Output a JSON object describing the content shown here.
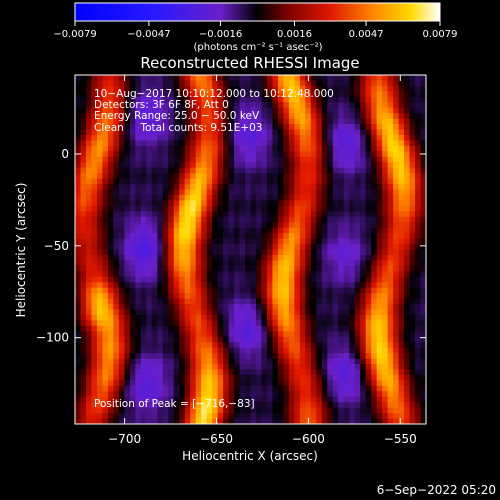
{
  "chart_data": {
    "type": "heatmap",
    "title": "Reconstructed RHESSI Image",
    "xlabel": "Heliocentric X (arcsec)",
    "ylabel": "Heliocentric Y (arcsec)",
    "xlim": [
      -727,
      -536
    ],
    "ylim": [
      -147,
      43
    ],
    "x_ticks": [
      {
        "value": -700,
        "label": "−700"
      },
      {
        "value": -650,
        "label": "−650"
      },
      {
        "value": -600,
        "label": "−600"
      },
      {
        "value": -550,
        "label": "−550"
      }
    ],
    "y_ticks": [
      {
        "value": 0,
        "label": "0"
      },
      {
        "value": -50,
        "label": "−50"
      },
      {
        "value": -100,
        "label": "−100"
      }
    ],
    "colorbar": {
      "range": [
        -0.0079,
        0.0079
      ],
      "ticks": [
        {
          "value": -0.0079,
          "label": "−0.0079"
        },
        {
          "value": -0.0047,
          "label": "−0.0047"
        },
        {
          "value": -0.0016,
          "label": "−0.0016"
        },
        {
          "value": 0.0016,
          "label": "0.0016"
        },
        {
          "value": 0.0047,
          "label": "0.0047"
        },
        {
          "value": 0.0079,
          "label": "0.0079"
        }
      ],
      "unit_label": "(photons cm⁻² s⁻¹ asec⁻²)"
    },
    "annotations": [
      "10−Aug−2017 10:10:12.000 to 10:12:48.000",
      "Detectors: 3F 6F 8F, Att 0",
      "Energy Range: 25.0 − 50.0 keV",
      "Clean     Total counts: 9.51E+03"
    ],
    "peak_label": "Position of Peak = [−716,−83]",
    "peak": {
      "x": -716,
      "y": -83
    },
    "ridges": [
      {
        "x": -715,
        "amp": 0.75
      },
      {
        "x": -661,
        "amp": 1.0
      },
      {
        "x": -607,
        "amp": 0.9
      },
      {
        "x": -555,
        "amp": 0.95
      }
    ],
    "troughs": [
      {
        "x": -688,
        "y": 20,
        "amp": -0.2
      },
      {
        "x": -688,
        "y": -52,
        "amp": -0.25
      },
      {
        "x": -688,
        "y": -125,
        "amp": -0.2
      },
      {
        "x": -633,
        "y": 10,
        "amp": -0.2
      },
      {
        "x": -633,
        "y": -95,
        "amp": -0.2
      },
      {
        "x": -580,
        "y": 5,
        "amp": -0.2
      },
      {
        "x": -580,
        "y": -55,
        "amp": -0.15
      },
      {
        "x": -580,
        "y": -120,
        "amp": -0.2
      }
    ]
  },
  "footer": {
    "timestamp": "6−Sep−2022 05:20"
  }
}
